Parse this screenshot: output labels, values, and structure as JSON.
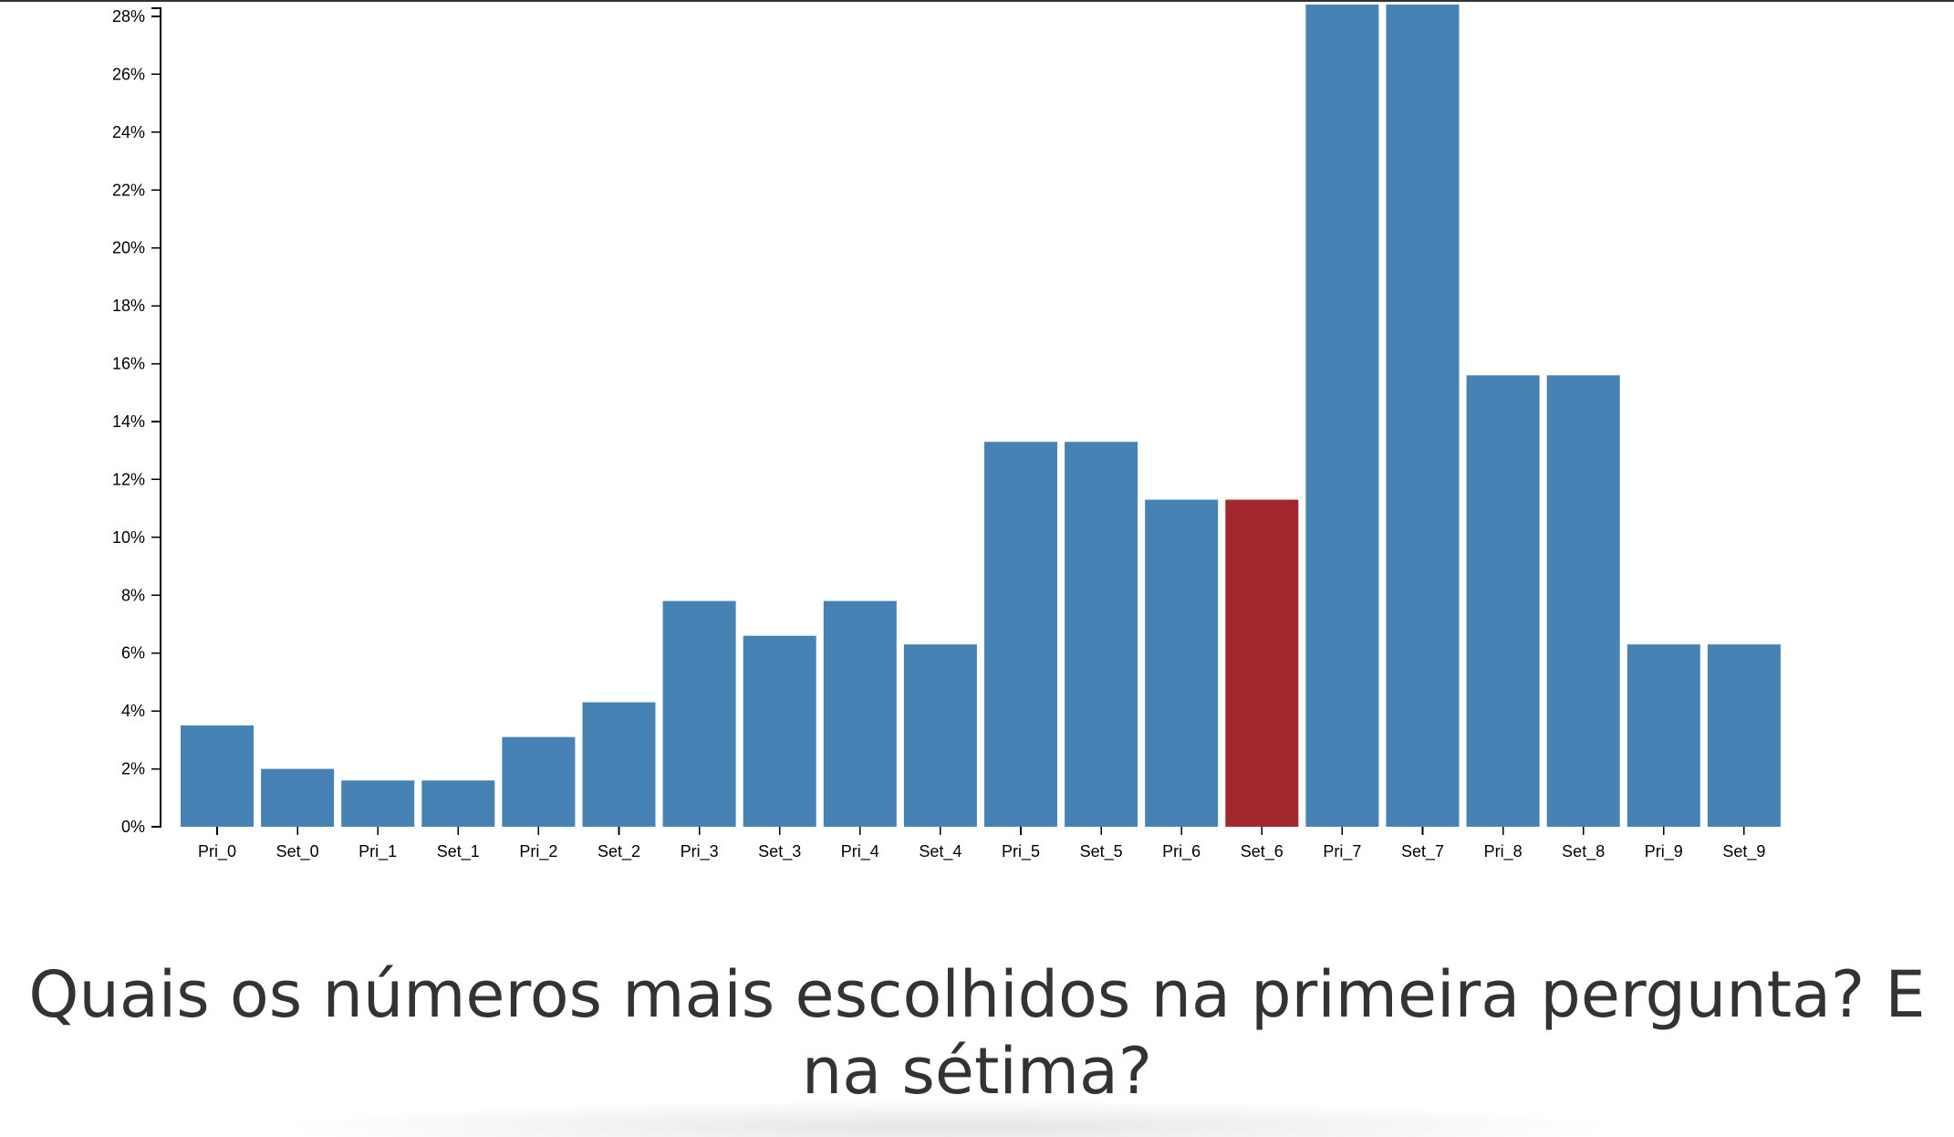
{
  "chart_data": {
    "type": "bar",
    "categories": [
      "Pri_0",
      "Set_0",
      "Pri_1",
      "Set_1",
      "Pri_2",
      "Set_2",
      "Pri_3",
      "Set_3",
      "Pri_4",
      "Set_4",
      "Pri_5",
      "Set_5",
      "Pri_6",
      "Set_6",
      "Pri_7",
      "Set_7",
      "Pri_8",
      "Set_8",
      "Pri_9",
      "Set_9"
    ],
    "values": [
      3.5,
      2.0,
      1.6,
      1.6,
      3.1,
      4.3,
      7.8,
      6.6,
      7.8,
      6.3,
      13.3,
      13.3,
      11.3,
      11.3,
      28.6,
      28.6,
      15.6,
      15.6,
      6.3,
      6.3
    ],
    "ylim": [
      0,
      28
    ],
    "yticks": [
      "0%",
      "2%",
      "4%",
      "6%",
      "8%",
      "10%",
      "12%",
      "14%",
      "16%",
      "18%",
      "20%",
      "22%",
      "24%",
      "26%",
      "28%"
    ],
    "bar_color": "#4682b4",
    "highlight_color": "#a3282d",
    "highlight_category": "Set_6",
    "grid": false
  },
  "question": "Quais os números mais escolhidos na primeira pergunta? E na sétima?"
}
